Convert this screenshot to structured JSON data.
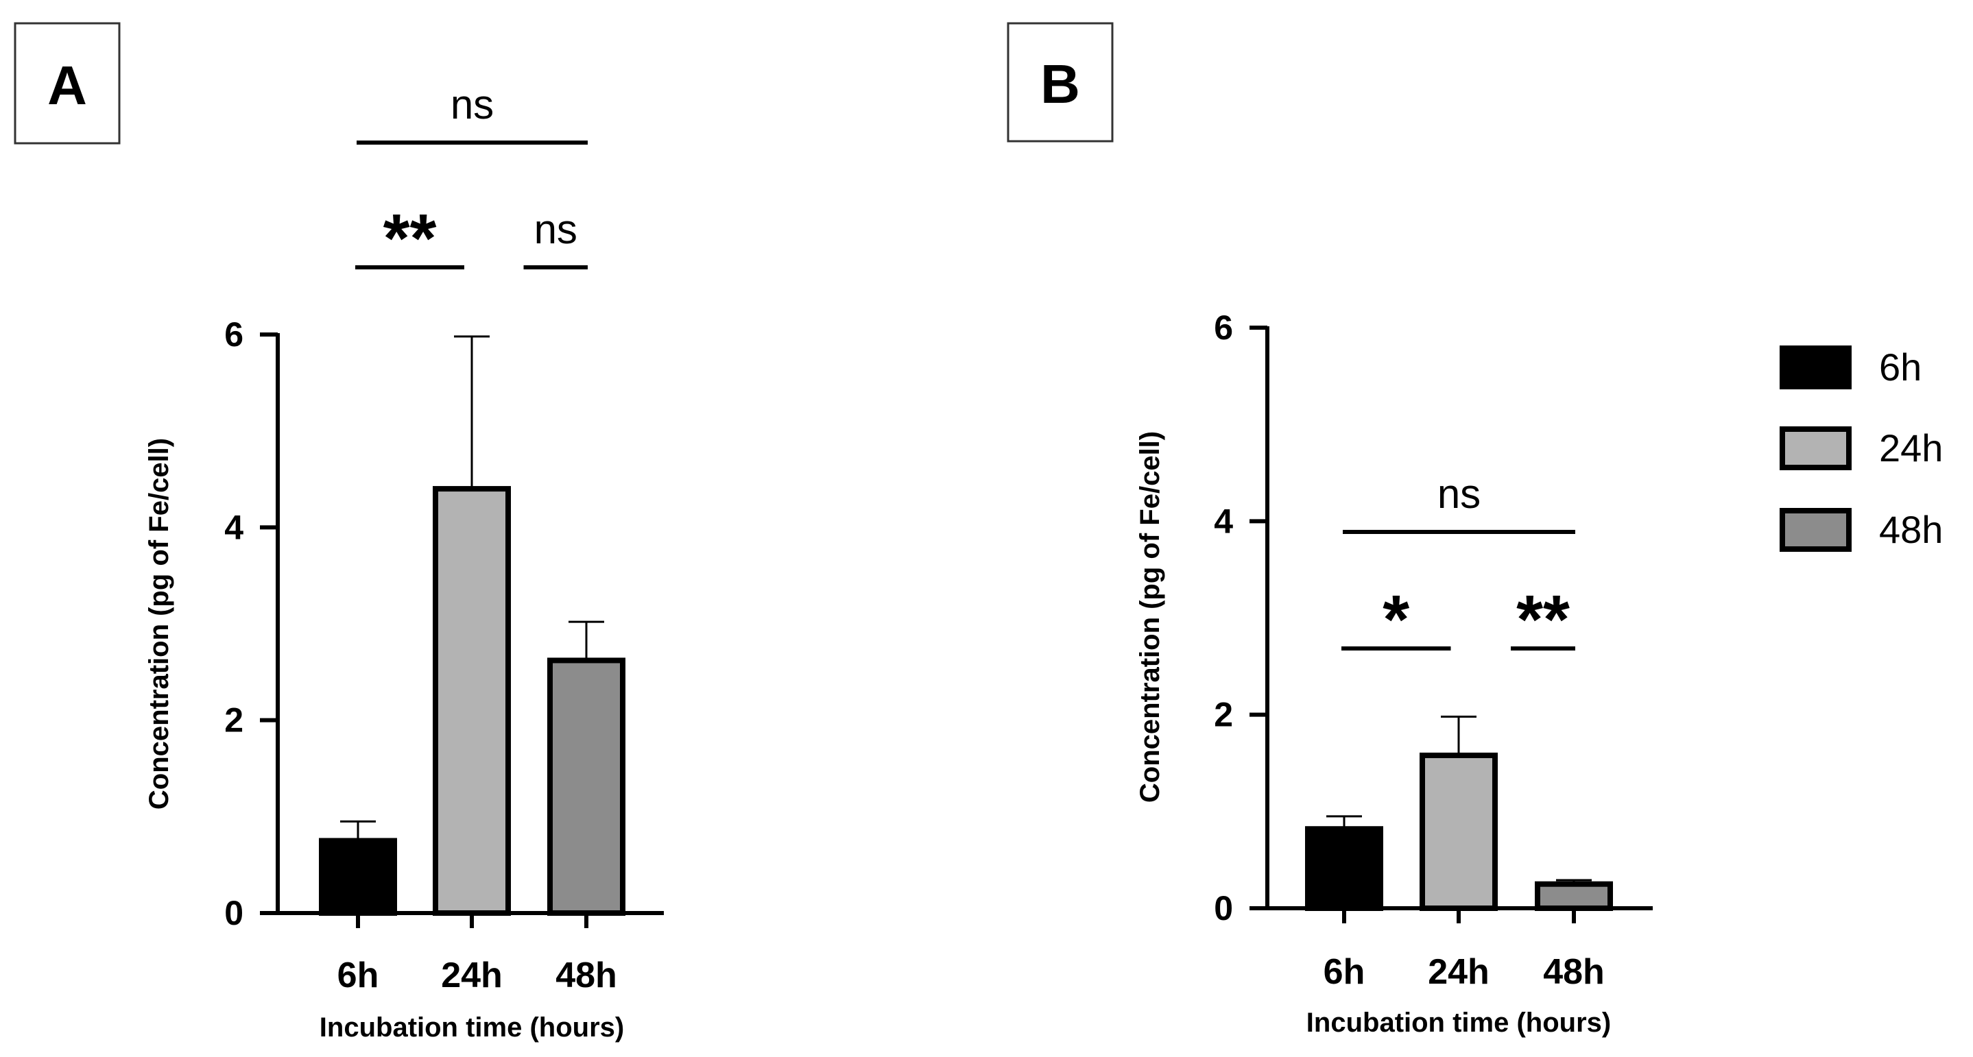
{
  "chart_data": [
    {
      "panel": "A",
      "type": "bar",
      "categories": [
        "6h",
        "24h",
        "48h"
      ],
      "values": [
        0.75,
        4.4,
        2.62
      ],
      "errors": [
        0.2,
        1.58,
        0.4
      ],
      "colors": [
        "#000000",
        "#b3b3b3",
        "#8c8c8c"
      ],
      "ylim": [
        0,
        6
      ],
      "yticks": [
        0,
        2,
        4,
        6
      ],
      "xlabel": "Incubation time (hours)",
      "ylabel": "Concentration (pg of Fe/cell)",
      "significance": [
        {
          "from": 0,
          "to": 2,
          "label": "ns",
          "level": 2
        },
        {
          "from": 0,
          "to": 1,
          "label": "**",
          "level": 1
        },
        {
          "from": 1,
          "to": 2,
          "label": "ns",
          "level": 1
        }
      ]
    },
    {
      "panel": "B",
      "type": "bar",
      "categories": [
        "6h",
        "24h",
        "48h"
      ],
      "values": [
        0.82,
        1.58,
        0.25
      ],
      "errors": [
        0.13,
        0.4,
        0.04
      ],
      "colors": [
        "#000000",
        "#b3b3b3",
        "#8c8c8c"
      ],
      "ylim": [
        0,
        6
      ],
      "yticks": [
        0,
        2,
        4,
        6
      ],
      "xlabel": "Incubation time (hours)",
      "ylabel": "Concentration (pg of Fe/cell)",
      "significance": [
        {
          "from": 0,
          "to": 2,
          "label": "ns",
          "level": 2
        },
        {
          "from": 0,
          "to": 1,
          "label": "*",
          "level": 1
        },
        {
          "from": 1,
          "to": 2,
          "label": "**",
          "level": 1
        }
      ]
    }
  ],
  "legend": {
    "position": "right",
    "entries": [
      {
        "label": "6h",
        "color": "#000000"
      },
      {
        "label": "24h",
        "color": "#b3b3b3"
      },
      {
        "label": "48h",
        "color": "#8c8c8c"
      }
    ]
  }
}
